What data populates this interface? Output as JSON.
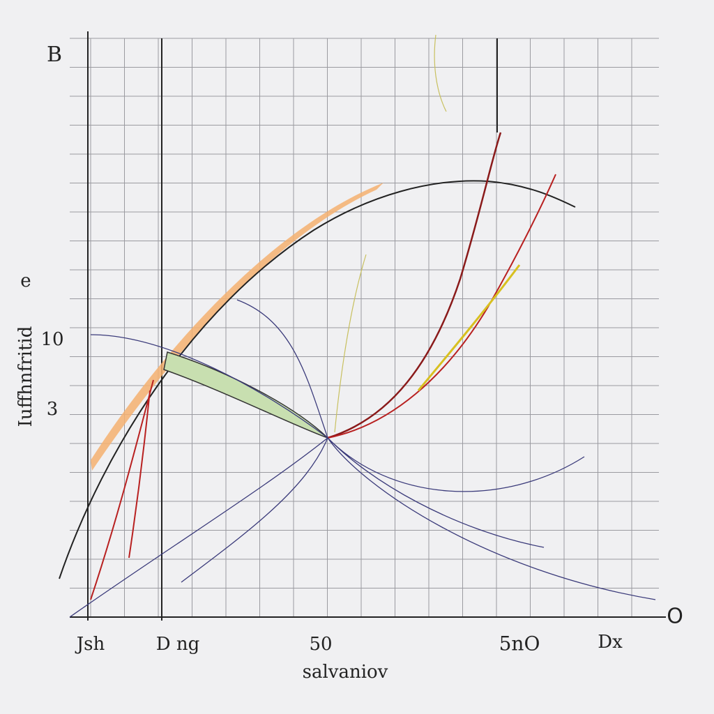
{
  "labels": {
    "top_left": "B",
    "y_mark_e": "e",
    "y_tick_a": "10",
    "y_tick_b": "3",
    "y_title": "Iuffhnfritid",
    "x_ticks": [
      "Jsh",
      "D ng",
      "50",
      "5nO",
      "Dx"
    ],
    "x_end": "O",
    "x_title": "salvaniov"
  }
}
